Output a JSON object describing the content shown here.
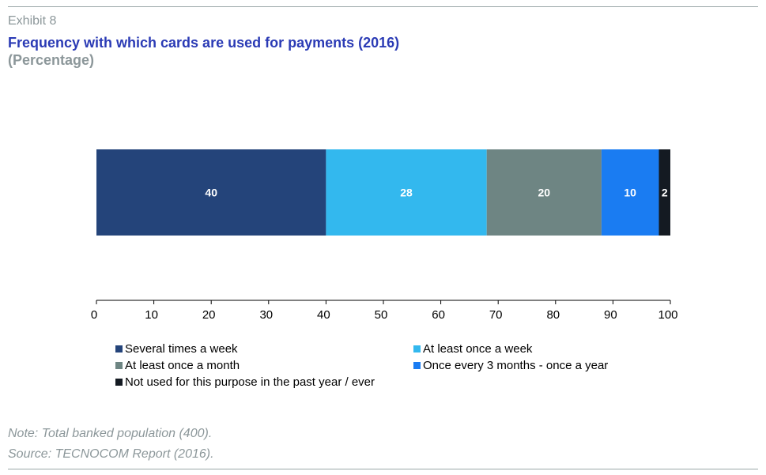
{
  "header": {
    "exhibit": "Exhibit 8",
    "title": "Frequency with which cards are used for payments (2016)",
    "subtitle": "(Percentage)"
  },
  "chart_data": {
    "type": "bar",
    "orientation": "horizontal",
    "stacked": true,
    "categories": [
      ""
    ],
    "series": [
      {
        "name": "Several times a week",
        "values": [
          40
        ],
        "color": "#24447a"
      },
      {
        "name": "At least once a week",
        "values": [
          28
        ],
        "color": "#33b8ee"
      },
      {
        "name": "At least once a month",
        "values": [
          20
        ],
        "color": "#6e8583"
      },
      {
        "name": "Once every 3 months - once a year",
        "values": [
          10
        ],
        "color": "#1a7cf2"
      },
      {
        "name": "Not used for this purpose in the past year / ever",
        "values": [
          2
        ],
        "color": "#141a22"
      }
    ],
    "data_labels": [
      "40",
      "28",
      "20",
      "10",
      "2"
    ],
    "xlim": [
      0,
      100
    ],
    "xticks": [
      "0",
      "10",
      "20",
      "30",
      "40",
      "50",
      "60",
      "70",
      "80",
      "90",
      "100"
    ],
    "grid": false,
    "legend_position": "bottom"
  },
  "footer": {
    "note": "Note: Total banked population (400).",
    "source_label": "Source:",
    "source_text": "TECNOCOM Report (2016)."
  }
}
